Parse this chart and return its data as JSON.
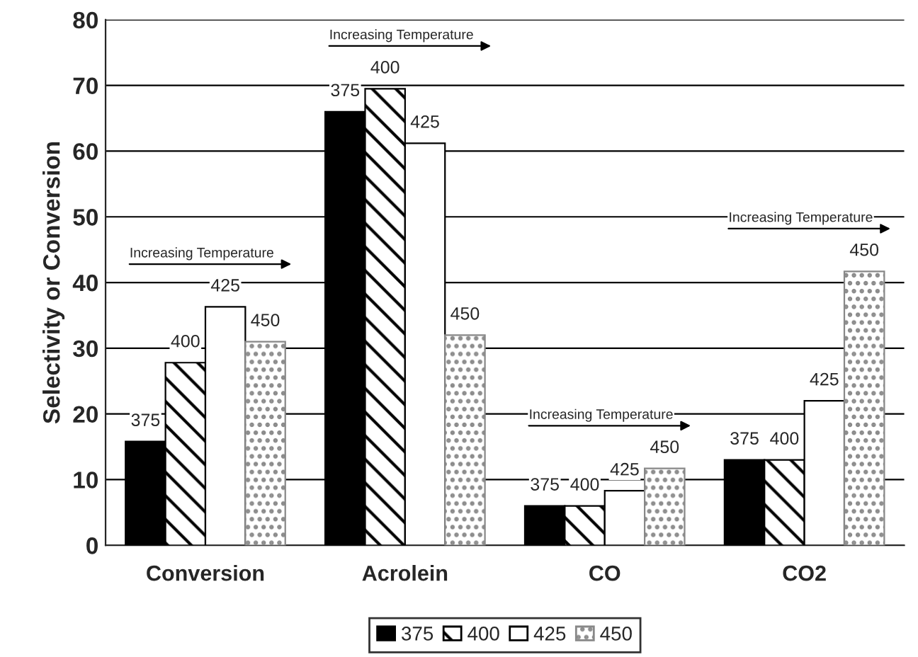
{
  "chart_data": {
    "type": "bar",
    "ylabel": "Selectivity or Conversion",
    "categories": [
      "Conversion",
      "Acrolein",
      "CO",
      "CO2"
    ],
    "series": [
      {
        "name": "375",
        "color": "#000000",
        "values": [
          15.8,
          66,
          6,
          13
        ]
      },
      {
        "name": "400",
        "color": "#000000",
        "values": [
          27.8,
          69.5,
          6,
          13
        ]
      },
      {
        "name": "425",
        "color": "#ffffff",
        "values": [
          36.3,
          61.2,
          8.3,
          22
        ]
      },
      {
        "name": "450",
        "color": "#888888",
        "values": [
          31,
          32,
          11.7,
          41.7
        ]
      }
    ],
    "annotations": [
      "Increasing Temperature",
      "Increasing Temperature",
      "Increasing Temperature",
      "Increasing Temperature"
    ],
    "ylim": [
      0,
      80
    ],
    "yticks": [
      0,
      10,
      20,
      30,
      40,
      50,
      60,
      70,
      80
    ],
    "grid": "y",
    "legend": "bottom"
  }
}
